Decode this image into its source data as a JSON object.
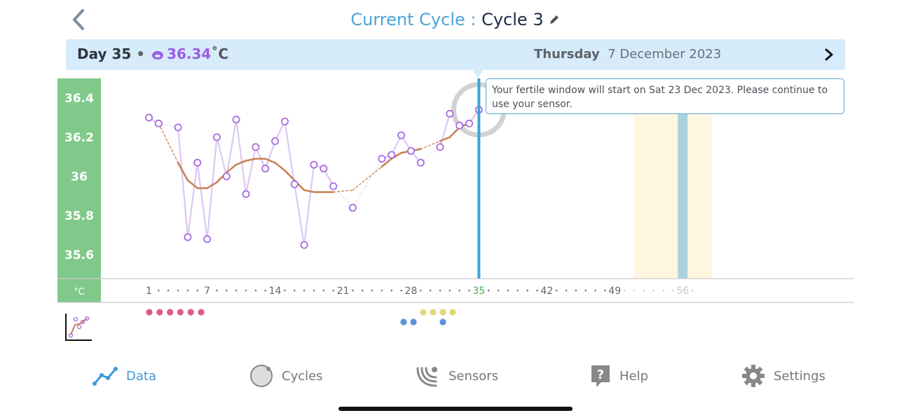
{
  "header": {
    "title_prefix": "Current Cycle : ",
    "title_cycle": "Cycle 3"
  },
  "day_bar": {
    "day": "Day 35",
    "separator": "•",
    "temperature": "36.34",
    "unit": "˚C",
    "weekday": "Thursday",
    "date": "7 December 2023"
  },
  "callout": {
    "text": "Your fertile window will start on Sat 23 Dec 2023. Please continue to use your sensor."
  },
  "colors": {
    "axis_green": "#80c98b",
    "readings": "#a86be0",
    "readings_line": "#dcc8f4",
    "trend": "#c98257",
    "today_line": "#3ca4d6",
    "fertile_window": "#fdf6e1",
    "ovulation": "#a9d3dc",
    "period_dots": "#df5a8c",
    "yellow_dots": "#e2d77a",
    "blue_dots": "#5b92dd",
    "accent": "#3f99d9"
  },
  "chart_data": {
    "type": "line",
    "ylabel": "°C",
    "y_ticks": [
      "36.4",
      "36.2",
      "36",
      "35.8",
      "35.6"
    ],
    "ylim": [
      35.5,
      36.5
    ],
    "xlim": [
      1,
      58
    ],
    "x_ticks": [
      "1",
      "7",
      "14",
      "21",
      "28",
      "35",
      "42",
      "49",
      "56"
    ],
    "today": 35,
    "future_from_day": 50,
    "series": [
      {
        "points": [
          [
            1,
            36.3
          ],
          [
            2,
            36.27
          ],
          [
            4,
            36.25
          ],
          [
            5,
            35.69
          ],
          [
            6,
            36.07
          ],
          [
            7,
            35.68
          ],
          [
            8,
            36.2
          ],
          [
            9,
            36.0
          ],
          [
            10,
            36.29
          ],
          [
            11,
            35.91
          ],
          [
            12,
            36.15
          ],
          [
            13,
            36.04
          ],
          [
            14,
            36.18
          ],
          [
            15,
            36.28
          ],
          [
            16,
            35.96
          ],
          [
            17,
            35.65
          ],
          [
            18,
            36.06
          ],
          [
            19,
            36.04
          ],
          [
            20,
            35.95
          ],
          [
            22,
            35.84
          ],
          [
            25,
            36.09
          ],
          [
            26,
            36.11
          ],
          [
            27,
            36.21
          ],
          [
            28,
            36.13
          ],
          [
            29,
            36.07
          ],
          [
            31,
            36.15
          ],
          [
            32,
            36.32
          ],
          [
            33,
            36.26
          ],
          [
            34,
            36.27
          ],
          [
            35,
            36.34
          ]
        ]
      },
      {
        "points": [
          [
            2,
            36.27
          ],
          [
            4,
            36.07
          ],
          [
            5,
            35.98
          ],
          [
            6,
            35.94
          ],
          [
            7,
            35.94
          ],
          [
            8,
            35.97
          ],
          [
            9,
            36.02
          ],
          [
            10,
            36.06
          ],
          [
            11,
            36.08
          ],
          [
            12,
            36.09
          ],
          [
            13,
            36.09
          ],
          [
            14,
            36.07
          ],
          [
            15,
            36.03
          ],
          [
            16,
            35.98
          ],
          [
            17,
            35.93
          ],
          [
            18,
            35.92
          ],
          [
            19,
            35.92
          ],
          [
            20,
            35.92
          ],
          [
            22,
            35.93
          ],
          [
            25,
            36.05
          ],
          [
            26,
            36.09
          ],
          [
            27,
            36.12
          ],
          [
            28,
            36.13
          ],
          [
            29,
            36.14
          ],
          [
            31,
            36.18
          ],
          [
            32,
            36.2
          ],
          [
            33,
            36.25
          ]
        ]
      }
    ],
    "fertile_window": [
      51,
      59
    ],
    "ovulation_day": 56,
    "period_days": [
      1,
      2,
      3,
      4,
      5,
      6
    ],
    "yellow_marker_days": [
      28,
      29,
      30,
      31
    ],
    "blue_marker_days": [
      26,
      27,
      30
    ]
  },
  "tabs": [
    {
      "id": "data",
      "label": "Data",
      "icon": "chart-line-icon",
      "active": true
    },
    {
      "id": "cycles",
      "label": "Cycles",
      "icon": "circle-icon"
    },
    {
      "id": "sensors",
      "label": "Sensors",
      "icon": "signal-waves-icon"
    },
    {
      "id": "help",
      "label": "Help",
      "icon": "question-box-icon"
    },
    {
      "id": "settings",
      "label": "Settings",
      "icon": "gear-icon"
    }
  ]
}
